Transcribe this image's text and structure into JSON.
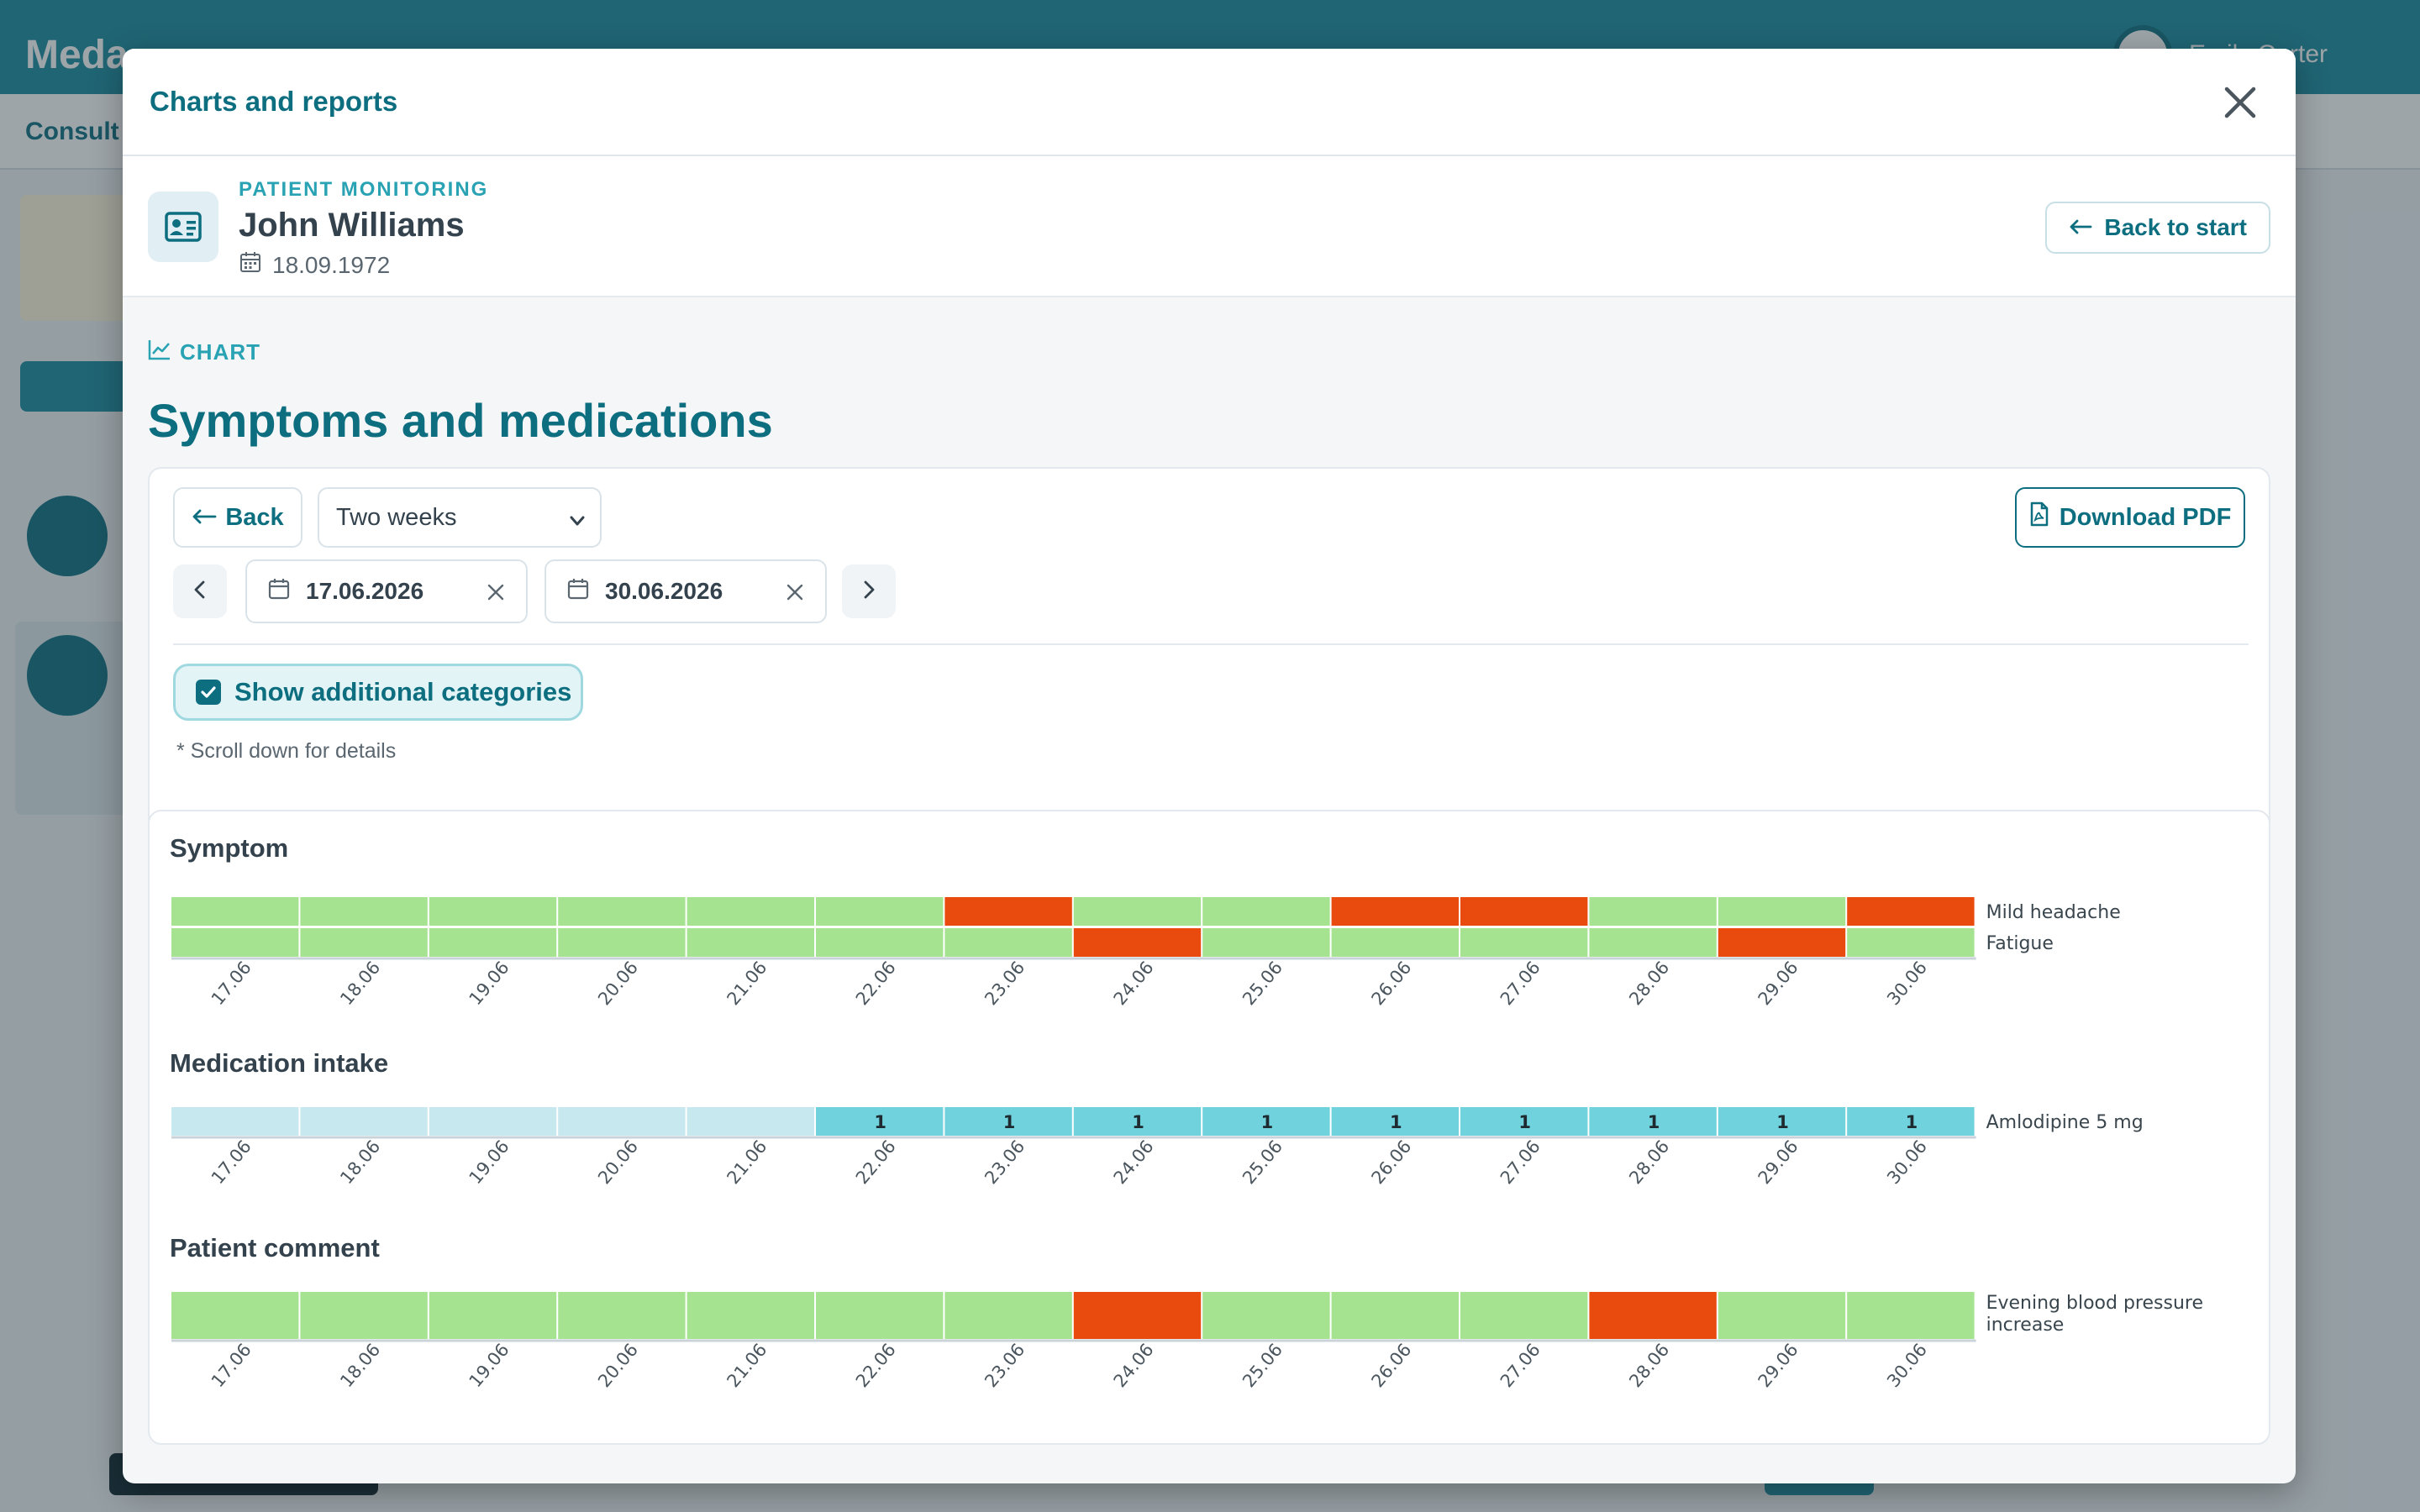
{
  "background": {
    "brand": "Meda",
    "user_name": "Emily Carter",
    "tab": "Consult"
  },
  "modal": {
    "title": "Charts and reports",
    "close_icon": "close-icon"
  },
  "patient": {
    "kicker": "PATIENT MONITORING",
    "name": "John Williams",
    "dob": "18.09.1972",
    "back_to_start": "Back to start"
  },
  "section": {
    "kicker": "CHART",
    "title": "Symptoms and medications"
  },
  "controls": {
    "back_label": "Back",
    "period_selected": "Two weeks",
    "download_pdf": "Download PDF",
    "date_from": "17.06.2026",
    "date_to": "30.06.2026",
    "show_additional": "Show additional categories",
    "show_additional_checked": true,
    "hint": "* Scroll down for details"
  },
  "colors": {
    "ok": "#a6e391",
    "alert": "#e94b0f",
    "med_taken": "#6fd2dd",
    "med_none": "#c7e8ef",
    "accent": "#0d6e80"
  },
  "chart_data": [
    {
      "type": "heatmap",
      "title": "Symptom",
      "categories": [
        "17.06",
        "18.06",
        "19.06",
        "20.06",
        "21.06",
        "22.06",
        "23.06",
        "24.06",
        "25.06",
        "26.06",
        "27.06",
        "28.06",
        "29.06",
        "30.06"
      ],
      "series": [
        {
          "name": "Mild headache",
          "values": [
            0,
            0,
            0,
            0,
            0,
            0,
            1,
            0,
            0,
            1,
            1,
            0,
            0,
            1
          ]
        },
        {
          "name": "Fatigue",
          "values": [
            0,
            0,
            0,
            0,
            0,
            0,
            0,
            1,
            0,
            0,
            0,
            0,
            1,
            0
          ]
        }
      ]
    },
    {
      "type": "heatmap",
      "title": "Medication intake",
      "categories": [
        "17.06",
        "18.06",
        "19.06",
        "20.06",
        "21.06",
        "22.06",
        "23.06",
        "24.06",
        "25.06",
        "26.06",
        "27.06",
        "28.06",
        "29.06",
        "30.06"
      ],
      "series": [
        {
          "name": "Amlodipine 5 mg",
          "values": [
            null,
            null,
            null,
            null,
            null,
            1,
            1,
            1,
            1,
            1,
            1,
            1,
            1,
            1
          ]
        }
      ]
    },
    {
      "type": "heatmap",
      "title": "Patient comment",
      "categories": [
        "17.06",
        "18.06",
        "19.06",
        "20.06",
        "21.06",
        "22.06",
        "23.06",
        "24.06",
        "25.06",
        "26.06",
        "27.06",
        "28.06",
        "29.06",
        "30.06"
      ],
      "series": [
        {
          "name": "Evening blood pressure increase",
          "values": [
            0,
            0,
            0,
            0,
            0,
            0,
            0,
            1,
            0,
            0,
            0,
            1,
            0,
            0
          ]
        }
      ]
    }
  ]
}
